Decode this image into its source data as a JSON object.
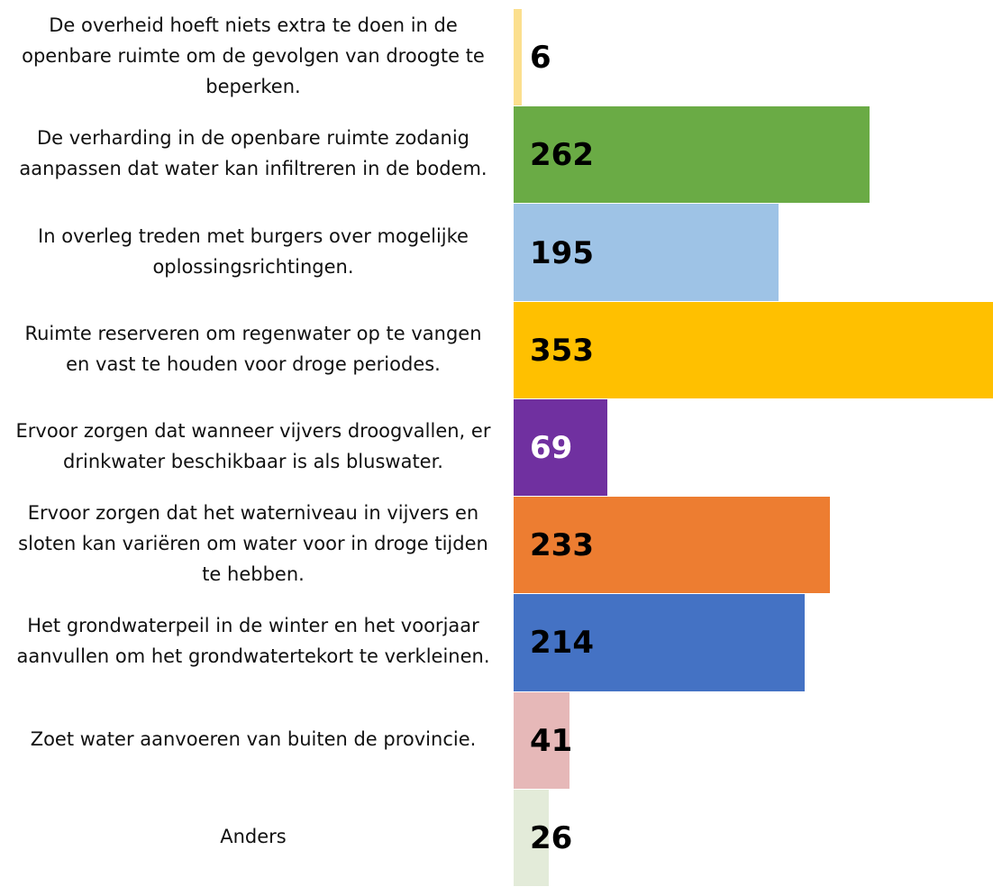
{
  "chart_data": {
    "type": "barh",
    "categories": [
      "De overheid hoeft niets extra te doen in de openbare ruimte om de gevolgen van droogte te beperken.",
      "De verharding in de openbare ruimte zodanig aanpassen dat water kan infiltreren in de bodem.",
      "In overleg treden met burgers over mogelijke oplossingsrichtingen.",
      "Ruimte reserveren om regenwater op te vangen en vast te houden voor droge periodes.",
      "Ervoor zorgen dat wanneer vijvers droogvallen, er drinkwater beschikbaar is als bluswater.",
      "Ervoor zorgen dat het waterniveau in vijvers en sloten kan variëren om water voor in droge tijden te hebben.",
      "Het grondwaterpeil in de winter en het voorjaar aanvullen om het grondwatertekort te verkleinen.",
      "Zoet water aanvoeren van buiten de provincie.",
      "Anders"
    ],
    "values": [
      6,
      262,
      195,
      353,
      69,
      233,
      214,
      41,
      26
    ],
    "colors": [
      "#fbdf8e",
      "#6aab45",
      "#9ec3e6",
      "#ffc000",
      "#7030a0",
      "#ed7d31",
      "#4472c4",
      "#e6b8b8",
      "#e3ebd9"
    ],
    "label_colors": [
      "#000000",
      "#000000",
      "#000000",
      "#000000",
      "#ffffff",
      "#000000",
      "#000000",
      "#000000",
      "#000000"
    ]
  }
}
